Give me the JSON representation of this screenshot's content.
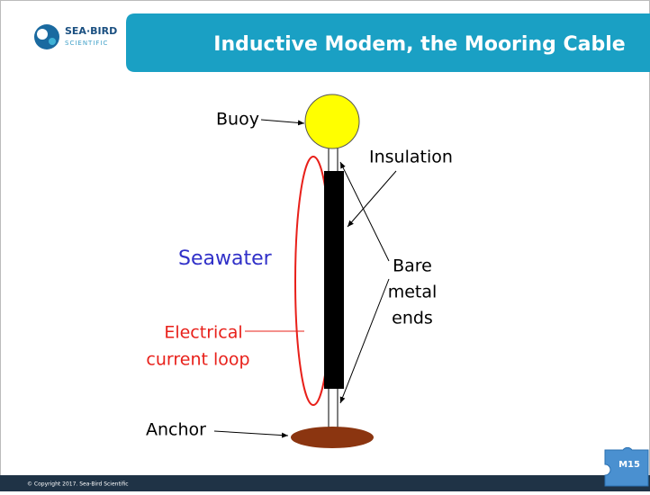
{
  "header": {
    "logo": {
      "line1": "SEA·BIRD",
      "line2": "SCIENTIFIC"
    },
    "title": "Inductive Modem, the Mooring Cable"
  },
  "diagram": {
    "buoy": "Buoy",
    "insulation": "Insulation",
    "bare_metal_ends": [
      "Bare",
      "metal",
      "ends"
    ],
    "seawater": "Seawater",
    "current_loop": [
      "Electrical",
      "current loop"
    ],
    "anchor": "Anchor"
  },
  "footer": {
    "copyright": "© Copyright 2017. Sea-Bird Scientific",
    "badge": "M15"
  }
}
